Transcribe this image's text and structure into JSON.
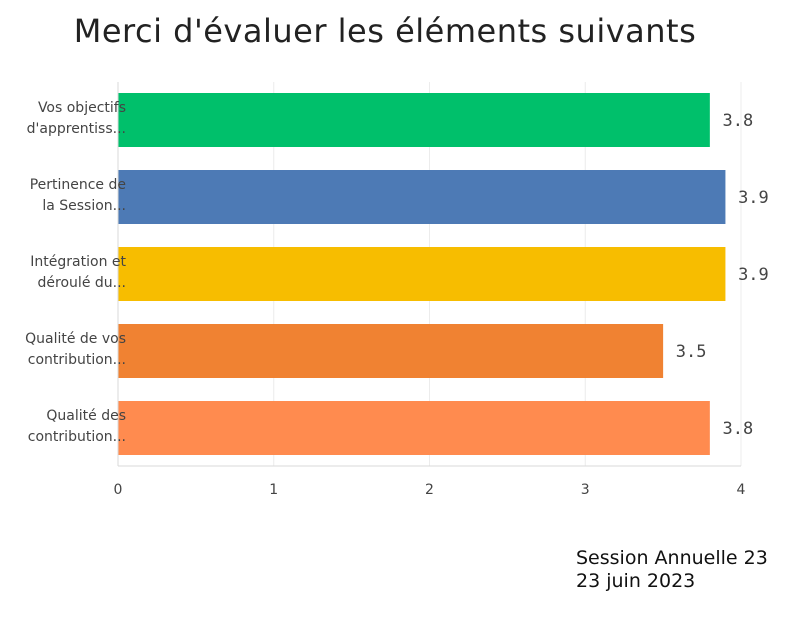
{
  "chart_data": {
    "type": "bar",
    "orientation": "horizontal",
    "title": "Merci d'évaluer les éléments suivants",
    "categories": [
      [
        "Vos objectifs",
        "d'apprentiss..."
      ],
      [
        "Pertinence de",
        "la Session..."
      ],
      [
        "Intégration et",
        "déroulé du..."
      ],
      [
        "Qualité de vos",
        "contribution..."
      ],
      [
        "Qualité des",
        "contribution..."
      ]
    ],
    "values": [
      3.8,
      3.9,
      3.9,
      3.5,
      3.8
    ],
    "value_labels": [
      "3.8",
      "3.9",
      "3.9",
      "3.5",
      "3.8"
    ],
    "colors": [
      "#00c06b",
      "#4d7ab5",
      "#f7bd00",
      "#f08232",
      "#ff8b4f"
    ],
    "xlim": [
      0,
      4
    ],
    "x_ticks": [
      "0",
      "1",
      "2",
      "3",
      "4"
    ],
    "grid": "vertical",
    "xlabel": "",
    "ylabel": ""
  },
  "footer": {
    "session": "Session Annuelle 23",
    "date": "23 juin 2023"
  }
}
